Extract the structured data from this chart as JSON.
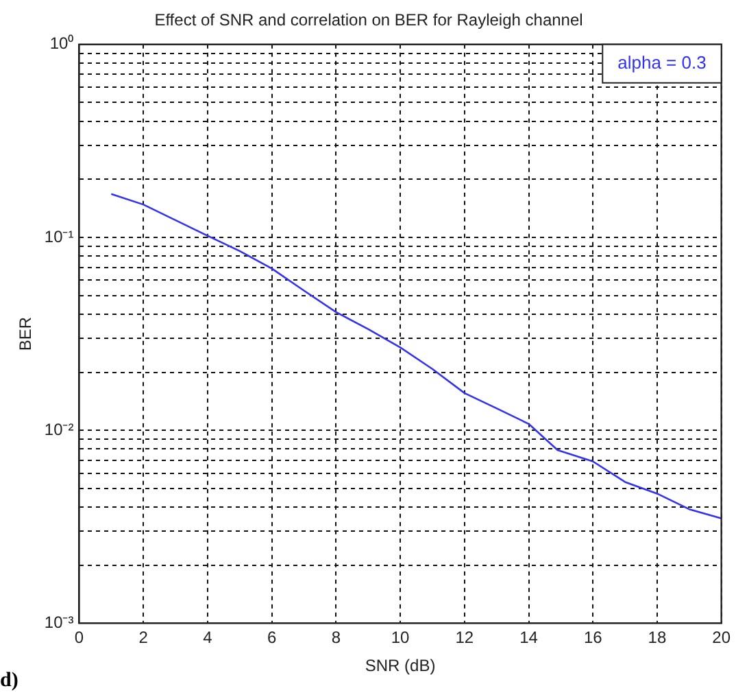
{
  "chart_data": {
    "type": "line",
    "title": "Effect of SNR and correlation on BER for Rayleigh channel",
    "xlabel": "SNR (dB)",
    "ylabel": "BER",
    "x": [
      1,
      2,
      4,
      5,
      6,
      7,
      8,
      9,
      10,
      11,
      12,
      13,
      14,
      14.9,
      16,
      17,
      18,
      19,
      20
    ],
    "series": [
      {
        "name": "alpha = 0.3",
        "color": "#3333ee",
        "values": [
          0.168,
          0.148,
          0.102,
          0.085,
          0.069,
          0.053,
          0.041,
          0.0335,
          0.0269,
          0.0208,
          0.0156,
          0.013,
          0.0108,
          0.0079,
          0.0069,
          0.0054,
          0.0047,
          0.0039,
          0.0035
        ]
      }
    ],
    "xlim": [
      0,
      20
    ],
    "xticks": [
      0,
      2,
      4,
      6,
      8,
      10,
      12,
      14,
      16,
      18,
      20
    ],
    "ylim": [
      0.001,
      1
    ],
    "log": "y",
    "yticks": [
      {
        "value": 0.001,
        "label": "10⁻³"
      },
      {
        "value": 0.002,
        "label": null
      },
      {
        "value": 0.003,
        "label": null
      },
      {
        "value": 0.004,
        "label": null
      },
      {
        "value": 0.005,
        "label": null
      },
      {
        "value": 0.006,
        "label": null
      },
      {
        "value": 0.007,
        "label": null
      },
      {
        "value": 0.008,
        "label": null
      },
      {
        "value": 0.009,
        "label": null
      },
      {
        "value": 0.01,
        "label": "10⁻²"
      },
      {
        "value": 0.02,
        "label": null
      },
      {
        "value": 0.03,
        "label": null
      },
      {
        "value": 0.04,
        "label": null
      },
      {
        "value": 0.05,
        "label": null
      },
      {
        "value": 0.06,
        "label": null
      },
      {
        "value": 0.07,
        "label": null
      },
      {
        "value": 0.08,
        "label": null
      },
      {
        "value": 0.09,
        "label": null
      },
      {
        "value": 0.1,
        "label": "10⁻¹"
      },
      {
        "value": 0.2,
        "label": null
      },
      {
        "value": 0.3,
        "label": null
      },
      {
        "value": 0.4,
        "label": null
      },
      {
        "value": 0.5,
        "label": null
      },
      {
        "value": 0.6,
        "label": null
      },
      {
        "value": 0.7,
        "label": null
      },
      {
        "value": 0.8,
        "label": null
      },
      {
        "value": 0.9,
        "label": null
      },
      {
        "value": 1,
        "label": "10⁰"
      }
    ],
    "grid": true,
    "legend": "top right",
    "marker": "none",
    "line_style": "solid",
    "annotations": [
      "d)"
    ]
  }
}
